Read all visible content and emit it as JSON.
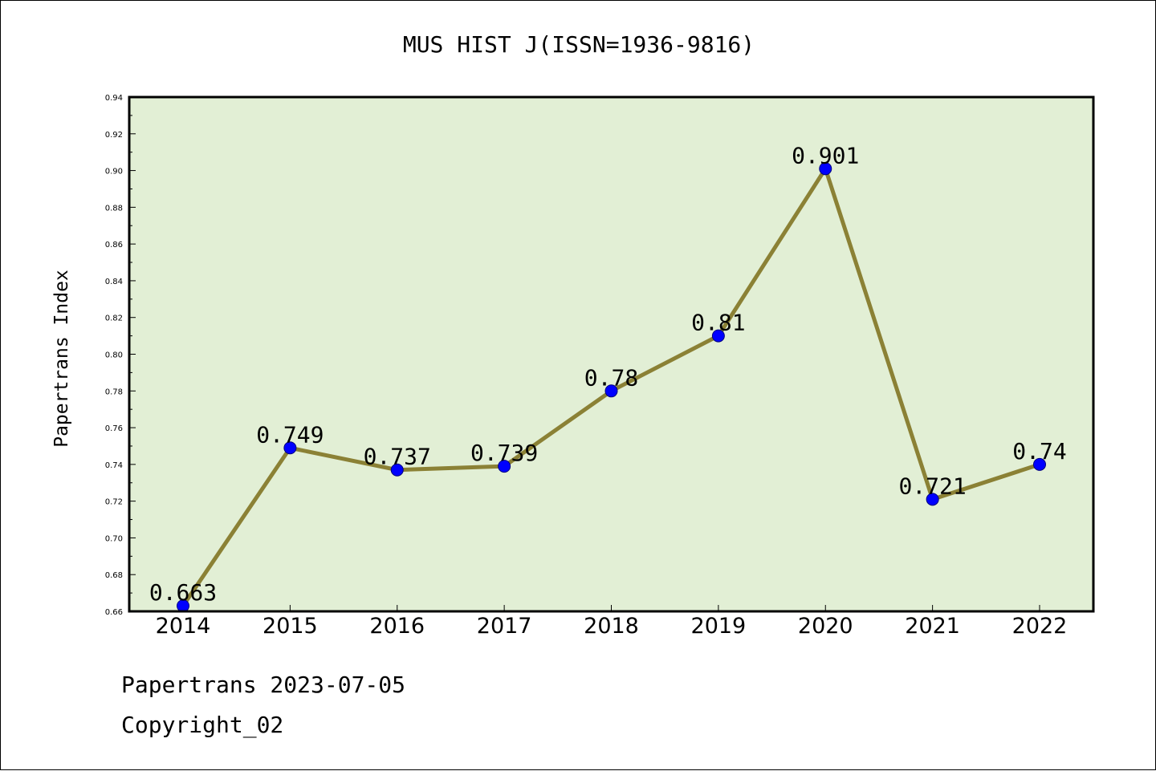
{
  "chart_data": {
    "type": "line",
    "title": "MUS HIST J(ISSN=1936-9816)",
    "xlabel": "",
    "ylabel": "Papertrans Index",
    "categories": [
      "2014",
      "2015",
      "2016",
      "2017",
      "2018",
      "2019",
      "2020",
      "2021",
      "2022"
    ],
    "values": [
      0.663,
      0.749,
      0.737,
      0.739,
      0.78,
      0.81,
      0.901,
      0.721,
      0.74
    ],
    "data_labels": [
      "0.663",
      "0.749",
      "0.737",
      "0.739",
      "0.78",
      "0.81",
      "0.901",
      "0.721",
      "0.74"
    ],
    "ylim": [
      0.66,
      0.94
    ],
    "y_ticks": [
      "0.66",
      "0.68",
      "0.70",
      "0.72",
      "0.74",
      "0.76",
      "0.78",
      "0.80",
      "0.82",
      "0.84",
      "0.86",
      "0.88",
      "0.90",
      "0.92",
      "0.94"
    ],
    "grid": false,
    "legend": "none",
    "colors": {
      "plot_background": "#e2efd5",
      "line": "#8b8135",
      "marker": "#0000ff",
      "marker_edge": "#00007f"
    }
  },
  "footer": {
    "date_text": "Papertrans 2023-07-05",
    "copyright_text": "Copyright_02"
  }
}
